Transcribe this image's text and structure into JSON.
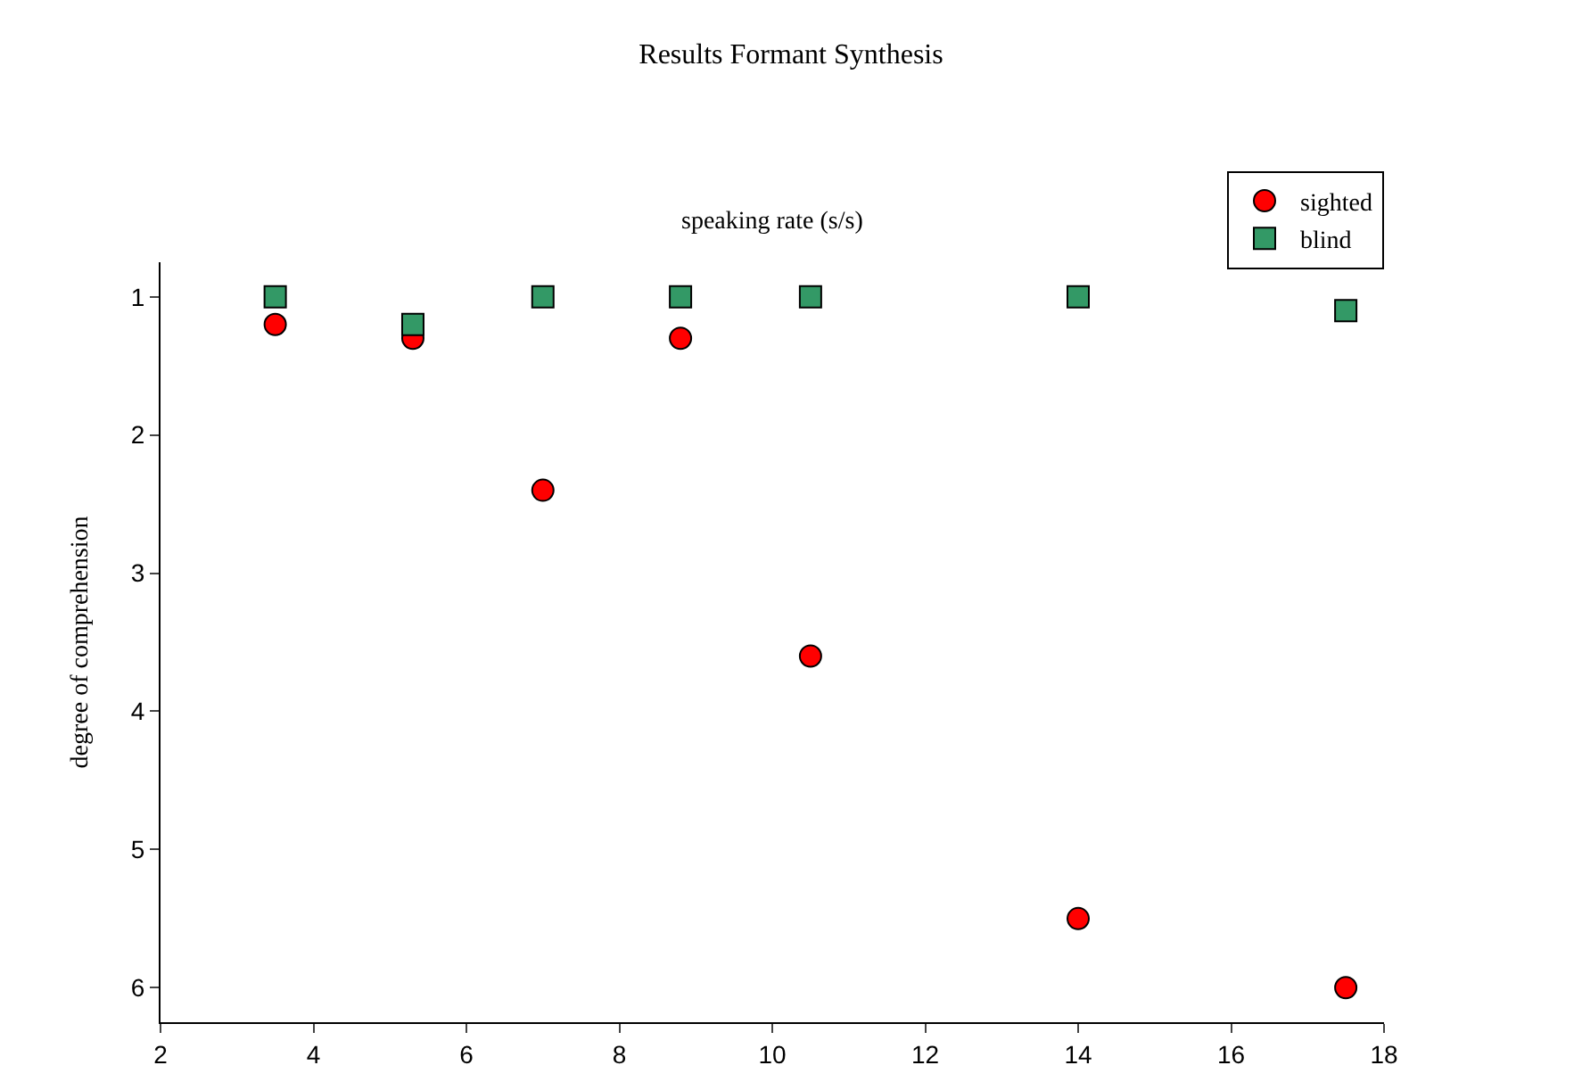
{
  "chart_data": {
    "type": "scatter",
    "title": "Results Formant Synthesis",
    "xlabel": "speaking rate (s/s)",
    "ylabel": "degree of comprehension",
    "x": [
      3.5,
      5.3,
      7.0,
      8.8,
      10.5,
      14.0,
      17.5
    ],
    "series": [
      {
        "name": "sighted",
        "color": "#ff0000",
        "marker": "circle",
        "values": [
          1.2,
          1.3,
          2.4,
          1.3,
          3.6,
          5.5,
          6.0
        ]
      },
      {
        "name": "blind",
        "color": "#339966",
        "marker": "square",
        "values": [
          1.0,
          1.2,
          1.0,
          1.0,
          1.0,
          1.0,
          1.1
        ]
      }
    ],
    "xlim": [
      2,
      18
    ],
    "xticks": [
      2,
      4,
      6,
      8,
      10,
      12,
      14,
      16,
      18
    ],
    "ylim": [
      6.25,
      0.75
    ],
    "yticks": [
      1,
      2,
      3,
      4,
      5,
      6
    ],
    "legend": "top right"
  }
}
